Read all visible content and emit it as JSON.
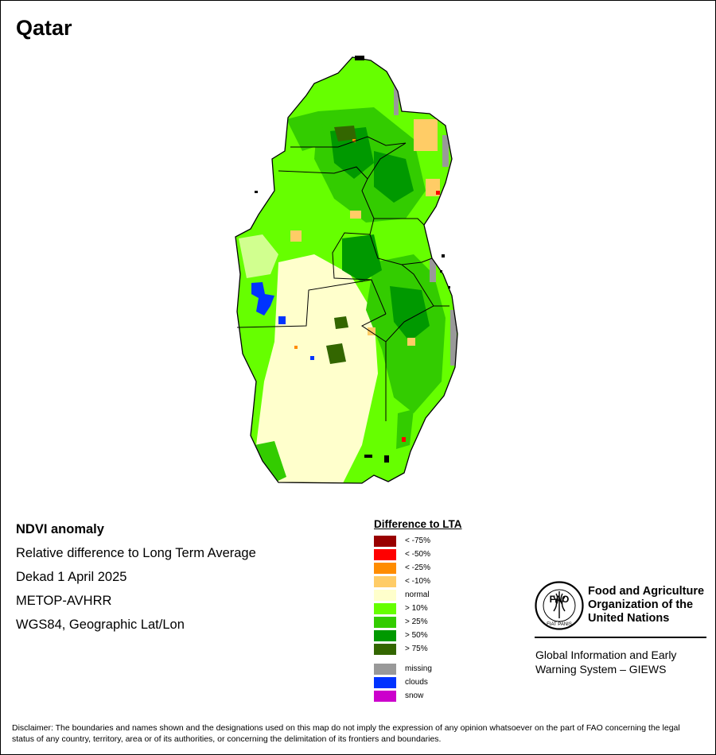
{
  "title": "Qatar",
  "product": {
    "name": "NDVI anomaly",
    "description": "Relative difference to Long Term Average",
    "period": "Dekad 1 April 2025",
    "sensor": "METOP-AVHRR",
    "projection": "WGS84, Geographic Lat/Lon"
  },
  "legend": {
    "title": "Difference to LTA",
    "classes": [
      {
        "label": "< -75%",
        "color": "#990000"
      },
      {
        "label": "< -50%",
        "color": "#ff0000"
      },
      {
        "label": "< -25%",
        "color": "#ff8c00"
      },
      {
        "label": "< -10%",
        "color": "#ffcc66"
      },
      {
        "label": "normal",
        "color": "#ffffcc"
      },
      {
        "label": "> 10%",
        "color": "#66ff00"
      },
      {
        "label": "> 25%",
        "color": "#33cc00"
      },
      {
        "label": "> 50%",
        "color": "#009900"
      },
      {
        "label": "> 75%",
        "color": "#336600"
      }
    ],
    "special": [
      {
        "label": "missing",
        "color": "#999999"
      },
      {
        "label": "clouds",
        "color": "#0033ff"
      },
      {
        "label": "snow",
        "color": "#cc00cc"
      }
    ]
  },
  "organization": {
    "logo_text": "FAO",
    "logo_motto": "FIAT PANIS",
    "name": "Food and Agriculture Organization of the United Nations",
    "system": "Global Information and Early Warning System – GIEWS"
  },
  "disclaimer": "Disclaimer: The boundaries and names shown and the designations used on this map do not imply the expression of any opinion whatsoever on the part of FAO concerning the legal status of any country, territory, area or of its authorities, or concerning the delimitation of its frontiers and boundaries."
}
